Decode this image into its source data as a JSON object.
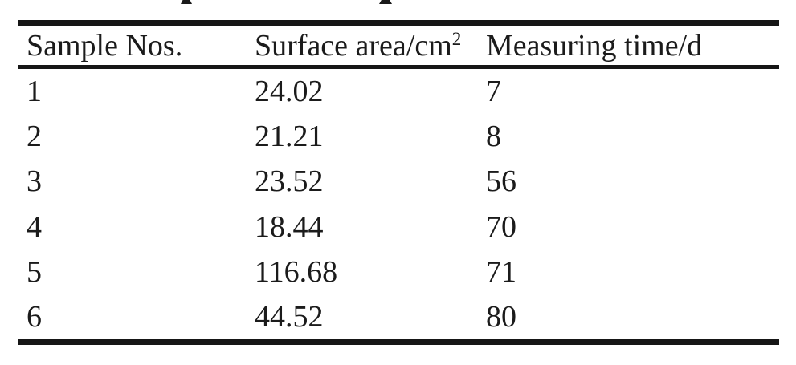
{
  "page": {
    "ink_color": "#1b1b1b",
    "rule_color": "#161616",
    "background_color": "#ffffff",
    "cropped_title_note": "caption above table cut off; only two bold letter descenders visible"
  },
  "table": {
    "columns": [
      {
        "key": "sample",
        "label": "Sample Nos."
      },
      {
        "key": "area",
        "label_base": "Surface area/cm",
        "label_sup": "2"
      },
      {
        "key": "time",
        "label": "Measuring time/d"
      }
    ],
    "rows": [
      {
        "sample": "1",
        "area": "24.02",
        "time": "7"
      },
      {
        "sample": "2",
        "area": "21.21",
        "time": "8"
      },
      {
        "sample": "3",
        "area": "23.52",
        "time": "56"
      },
      {
        "sample": "4",
        "area": "18.44",
        "time": "70"
      },
      {
        "sample": "5",
        "area": "116.68",
        "time": "71"
      },
      {
        "sample": "6",
        "area": "44.52",
        "time": "80"
      }
    ]
  }
}
